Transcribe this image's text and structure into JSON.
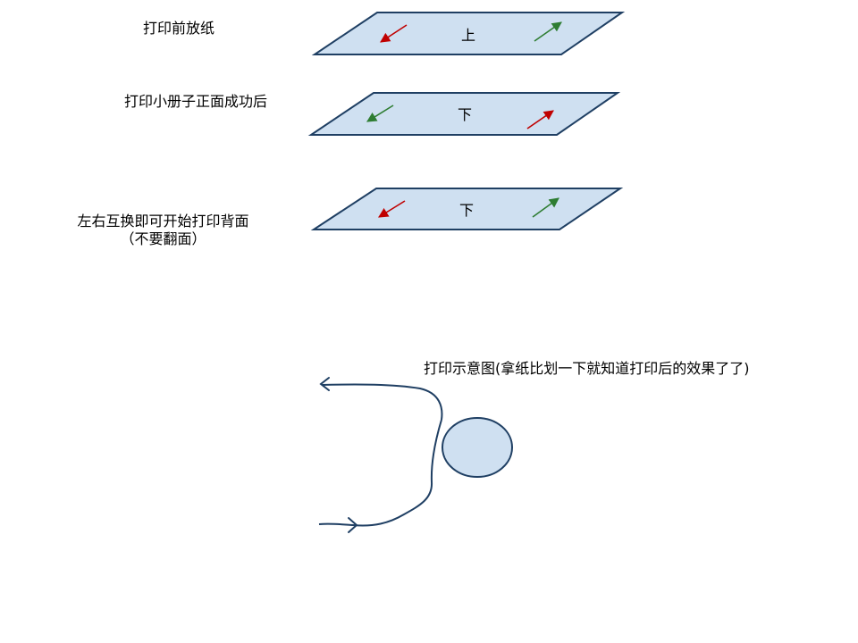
{
  "steps": {
    "before": "打印前放纸",
    "after_front": "打印小册子正面成功后",
    "swap_line1": "左右互换即可开始打印背面",
    "swap_line2": "（不要翻面）"
  },
  "sheets": {
    "sheet1": "上",
    "sheet2": "下",
    "sheet3": "下"
  },
  "demo": {
    "caption": "打印示意图(拿纸比划一下就知道打印后的效果了了)"
  },
  "colors": {
    "sheet_fill": "#cfe0f1",
    "sheet_stroke": "#1f3f63",
    "red_arrow": "#c00000",
    "green_arrow": "#2e7d32",
    "curve_stroke": "#1f3f63",
    "circle_fill": "#cfe0f1"
  }
}
